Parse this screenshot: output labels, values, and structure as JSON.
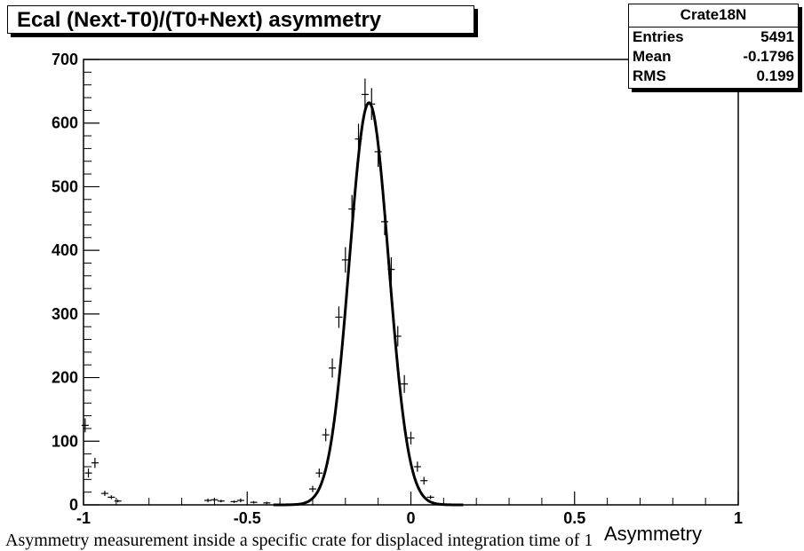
{
  "title": "Ecal (Next-T0)/(T0+Next) asymmetry",
  "stats": {
    "name": "Crate18N",
    "entries_label": "Entries",
    "entries_value": "5491",
    "mean_label": "Mean",
    "mean_value": "-0.1796",
    "rms_label": "RMS",
    "rms_value": "0.199"
  },
  "caption": "Asymmetry measurement inside a specific crate for displaced integration time of 1",
  "chart_data": {
    "type": "scatter",
    "title": "Ecal (Next-T0)/(T0+Next) asymmetry",
    "xlabel": "Asymmetry",
    "ylabel": "",
    "xlim": [
      -1,
      1
    ],
    "ylim": [
      0,
      700
    ],
    "x_ticks": [
      -1,
      -0.5,
      0,
      0.5,
      1
    ],
    "x_tick_labels": [
      "-1",
      "-0.5",
      "0",
      "0.5",
      "1"
    ],
    "y_ticks": [
      0,
      100,
      200,
      300,
      400,
      500,
      600,
      700
    ],
    "y_tick_labels": [
      "0",
      "100",
      "200",
      "300",
      "400",
      "500",
      "600",
      "700"
    ],
    "grid": false,
    "series": [
      {
        "kind": "histogram-points",
        "points": [
          {
            "x": -0.995,
            "y": 125,
            "err": 11
          },
          {
            "x": -0.985,
            "y": 50,
            "err": 7
          },
          {
            "x": -0.965,
            "y": 66,
            "err": 8
          },
          {
            "x": -0.935,
            "y": 18,
            "err": 4
          },
          {
            "x": -0.915,
            "y": 12,
            "err": 3
          },
          {
            "x": -0.895,
            "y": 6,
            "err": 2
          },
          {
            "x": -0.62,
            "y": 7,
            "err": 3
          },
          {
            "x": -0.6,
            "y": 8,
            "err": 3
          },
          {
            "x": -0.58,
            "y": 6,
            "err": 2
          },
          {
            "x": -0.54,
            "y": 5,
            "err": 2
          },
          {
            "x": -0.52,
            "y": 7,
            "err": 3
          },
          {
            "x": -0.48,
            "y": 4,
            "err": 2
          },
          {
            "x": -0.44,
            "y": 3,
            "err": 2
          },
          {
            "x": -0.3,
            "y": 25,
            "err": 5
          },
          {
            "x": -0.28,
            "y": 50,
            "err": 7
          },
          {
            "x": -0.26,
            "y": 110,
            "err": 10
          },
          {
            "x": -0.24,
            "y": 215,
            "err": 15
          },
          {
            "x": -0.22,
            "y": 295,
            "err": 17
          },
          {
            "x": -0.2,
            "y": 385,
            "err": 20
          },
          {
            "x": -0.18,
            "y": 465,
            "err": 22
          },
          {
            "x": -0.16,
            "y": 575,
            "err": 24
          },
          {
            "x": -0.14,
            "y": 645,
            "err": 25
          },
          {
            "x": -0.12,
            "y": 630,
            "err": 25
          },
          {
            "x": -0.1,
            "y": 555,
            "err": 24
          },
          {
            "x": -0.08,
            "y": 445,
            "err": 21
          },
          {
            "x": -0.06,
            "y": 370,
            "err": 19
          },
          {
            "x": -0.04,
            "y": 265,
            "err": 16
          },
          {
            "x": -0.02,
            "y": 190,
            "err": 14
          },
          {
            "x": 0.0,
            "y": 105,
            "err": 10
          },
          {
            "x": 0.02,
            "y": 60,
            "err": 8
          },
          {
            "x": 0.04,
            "y": 38,
            "err": 6
          },
          {
            "x": 0.06,
            "y": 12,
            "err": 3
          }
        ]
      },
      {
        "kind": "gaussian-fit",
        "amplitude": 632,
        "mean": -0.128,
        "sigma": 0.06,
        "x_range": [
          -0.42,
          0.16
        ]
      }
    ]
  }
}
